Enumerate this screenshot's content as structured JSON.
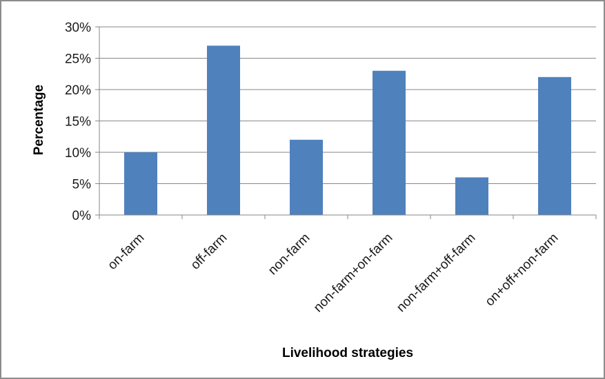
{
  "chart_data": {
    "type": "bar",
    "title": "",
    "xlabel": "Livelihood strategies",
    "ylabel": "Percentage",
    "categories": [
      "on-farm",
      "off-farm",
      "non-farm",
      "non-farm+on-farm",
      "non-farm+off-farm",
      "on+off+non-farm"
    ],
    "series": [
      {
        "values": [
          10,
          27,
          12,
          23,
          6,
          22
        ]
      }
    ],
    "ylim": [
      0,
      30
    ],
    "yticks": [
      0,
      5,
      10,
      15,
      20,
      25,
      30
    ],
    "ytick_labels": [
      "0%",
      "5%",
      "10%",
      "15%",
      "20%",
      "25%",
      "30%"
    ],
    "grid": true,
    "legend": "none",
    "bar_color": "#4f81bd",
    "grid_color": "#868686"
  }
}
